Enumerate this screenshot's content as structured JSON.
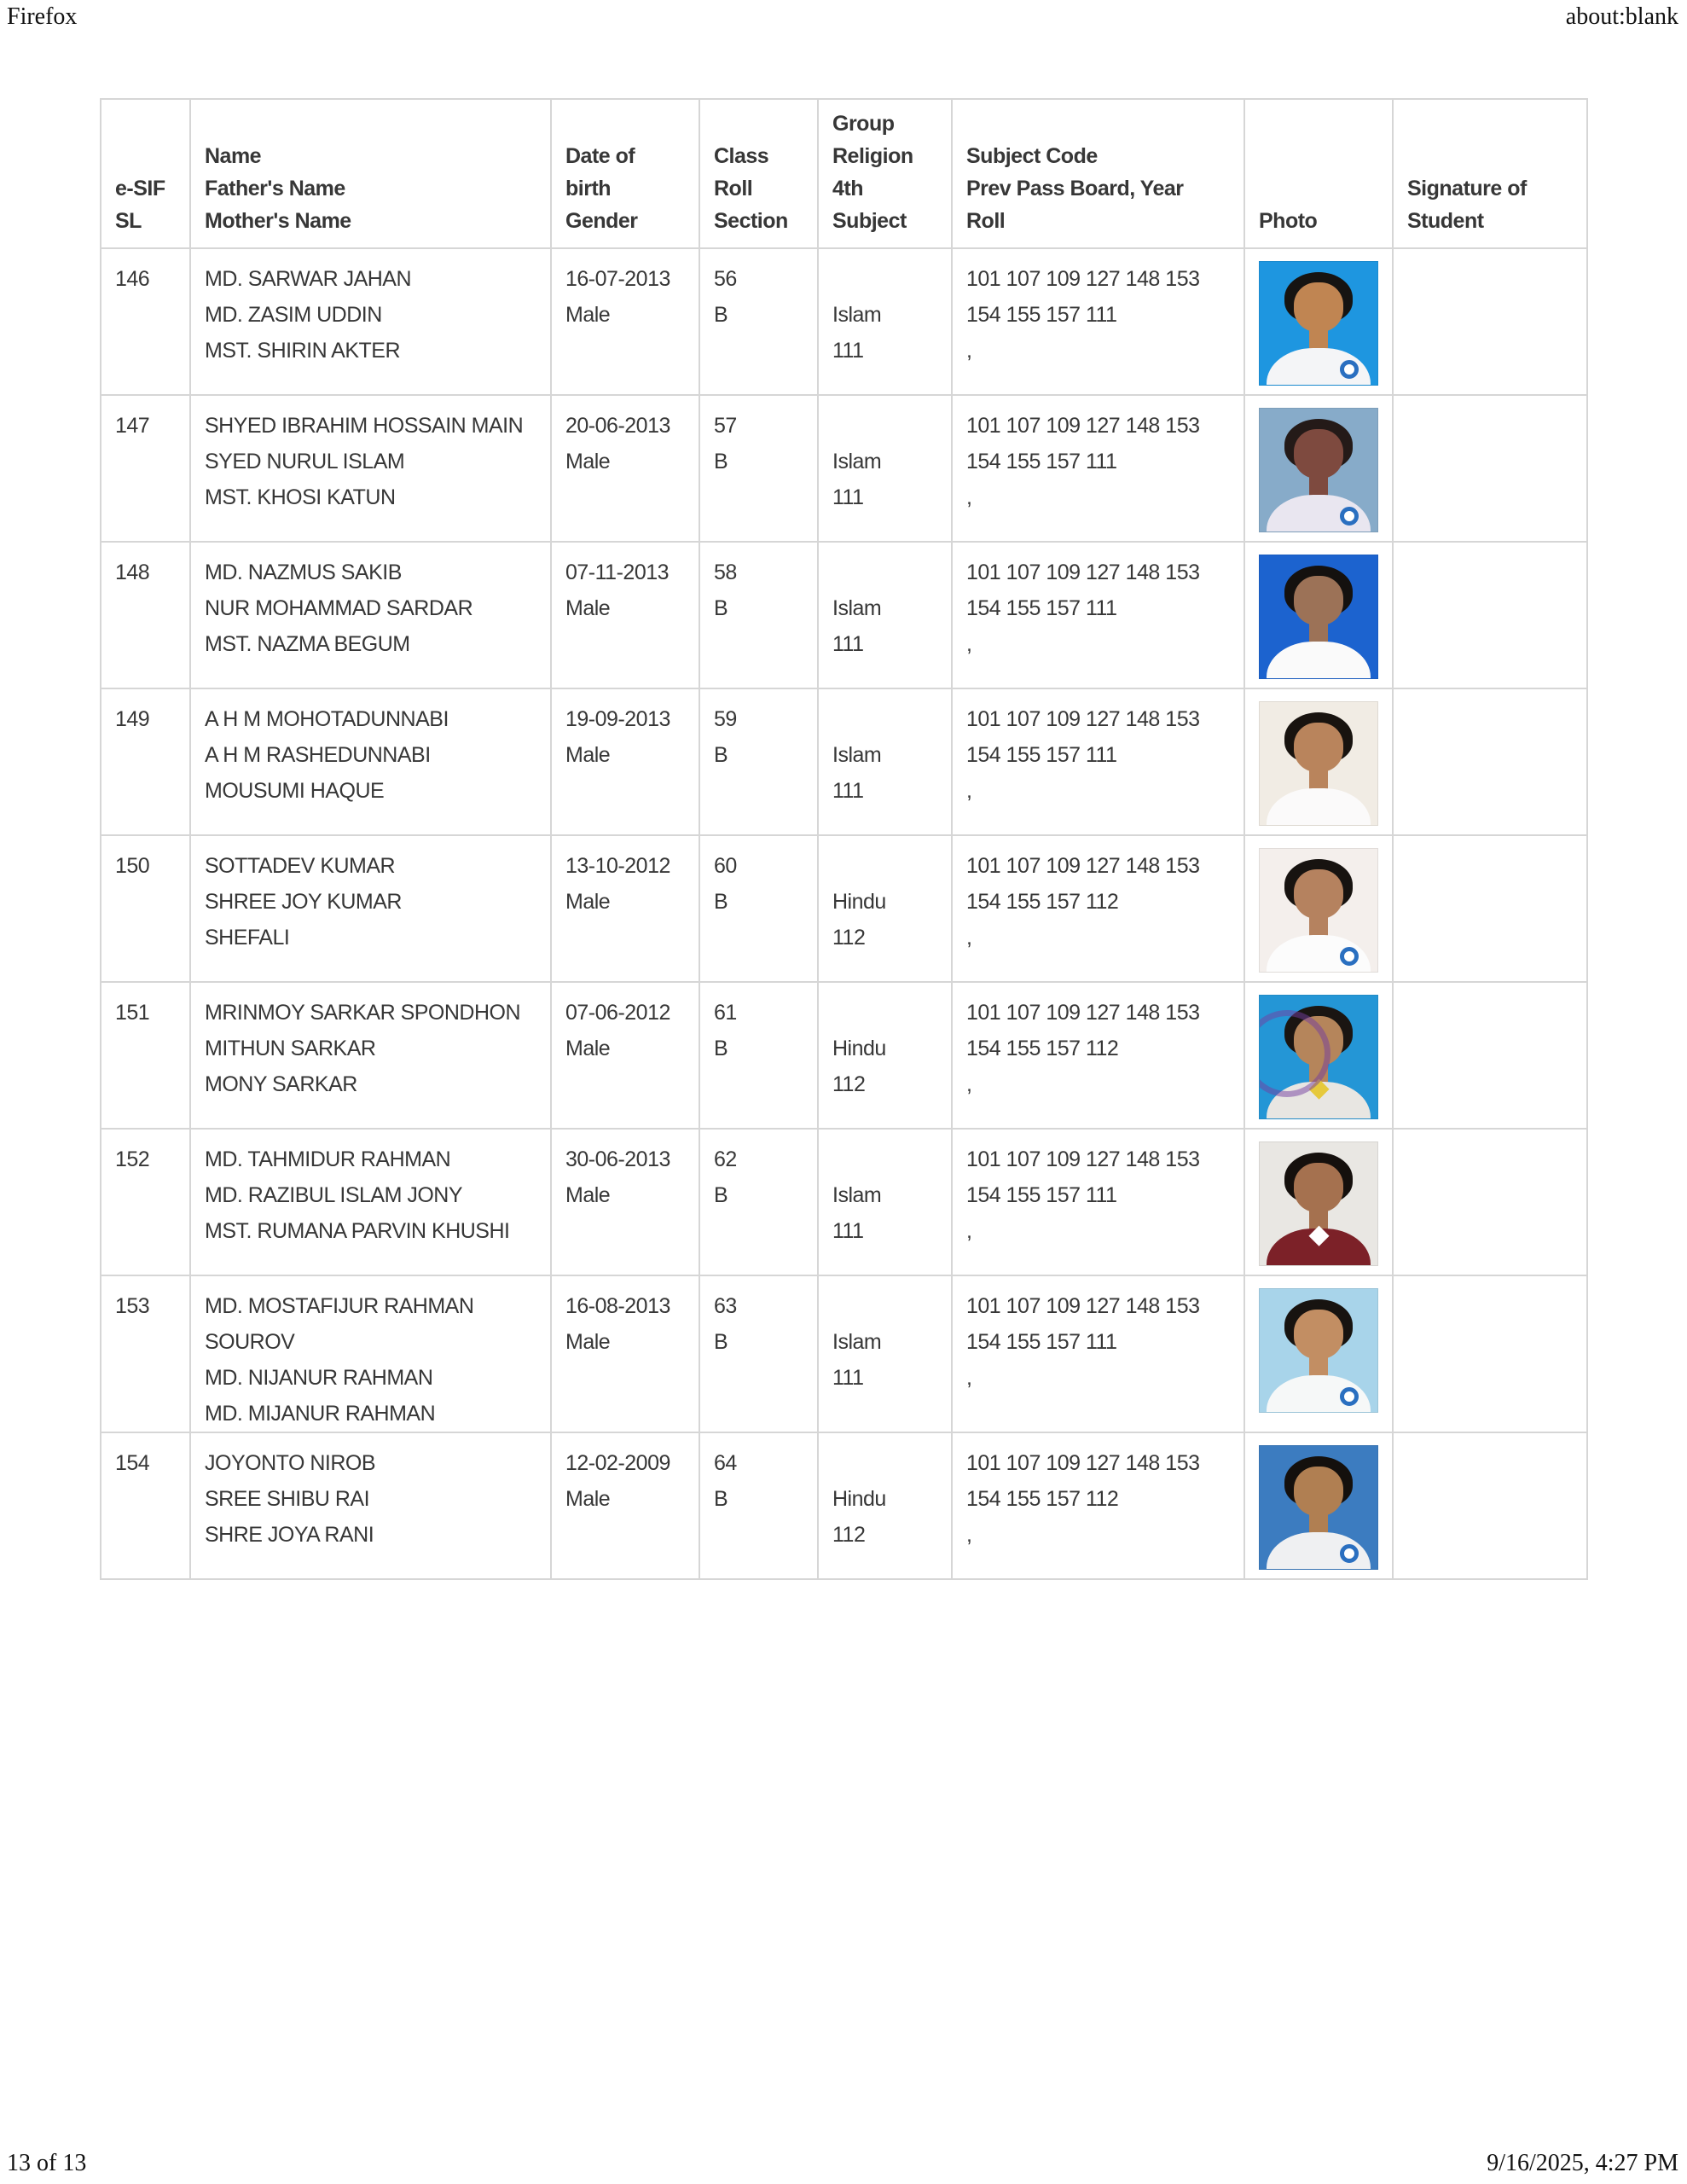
{
  "page": {
    "app_name": "Firefox",
    "url": "about:blank",
    "footer_page": "13 of 13",
    "footer_timestamp": "9/16/2025, 4:27 PM"
  },
  "table": {
    "headers": {
      "sl": [
        "e-SIF",
        "SL"
      ],
      "name": [
        "Name",
        "Father's Name",
        "Mother's Name"
      ],
      "dob": [
        "Date of",
        "birth",
        "Gender"
      ],
      "roll": [
        "Class",
        "Roll",
        "Section"
      ],
      "group": [
        "Group",
        "Religion",
        "4th",
        "Subject"
      ],
      "subject": [
        "Subject Code",
        "Prev Pass Board, Year",
        "Roll"
      ],
      "photo": [
        "Photo"
      ],
      "signature": [
        "Signature of",
        "Student"
      ]
    },
    "rows": [
      {
        "sl": "146",
        "name": [
          "MD. SARWAR JAHAN",
          "MD. ZASIM UDDIN",
          "MST. SHIRIN AKTER"
        ],
        "dob": [
          "16-07-2013",
          "Male"
        ],
        "roll": [
          "56",
          "B"
        ],
        "group": [
          "",
          "Islam",
          "111"
        ],
        "subject": [
          "101 107 109 127 148 153",
          "154 155 157 111",
          ","
        ],
        "photo": {
          "bg": "#1e96e0",
          "hair": "#161412",
          "skin": "#c08552",
          "shirt": "#f4f5f7",
          "badge": true,
          "stamp": false,
          "collar": ""
        }
      },
      {
        "sl": "147",
        "name": [
          "SHYED IBRAHIM HOSSAIN MAIN",
          "SYED NURUL ISLAM",
          "MST. KHOSI KATUN"
        ],
        "dob": [
          "20-06-2013",
          "Male"
        ],
        "roll": [
          "57",
          "B"
        ],
        "group": [
          "",
          "Islam",
          "111"
        ],
        "subject": [
          "101 107 109 127 148 153",
          "154 155 157 111",
          ","
        ],
        "photo": {
          "bg": "#87abc9",
          "hair": "#241a18",
          "skin": "#7e4a3f",
          "shirt": "#e9e6f0",
          "badge": true,
          "stamp": false,
          "collar": ""
        }
      },
      {
        "sl": "148",
        "name": [
          "MD. NAZMUS SAKIB",
          "NUR MOHAMMAD SARDAR",
          "MST. NAZMA BEGUM"
        ],
        "dob": [
          "07-11-2013",
          "Male"
        ],
        "roll": [
          "58",
          "B"
        ],
        "group": [
          "",
          "Islam",
          "111"
        ],
        "subject": [
          "101 107 109 127 148 153",
          "154 155 157 111",
          ","
        ],
        "photo": {
          "bg": "#1c63cf",
          "hair": "#14110f",
          "skin": "#9c7257",
          "shirt": "#fafafa",
          "badge": false,
          "stamp": false,
          "collar": ""
        }
      },
      {
        "sl": "149",
        "name": [
          "A H M MOHOTADUNNABI",
          "A H M RASHEDUNNABI",
          "MOUSUMI HAQUE"
        ],
        "dob": [
          "19-09-2013",
          "Male"
        ],
        "roll": [
          "59",
          "B"
        ],
        "group": [
          "",
          "Islam",
          "111"
        ],
        "subject": [
          "101 107 109 127 148 153",
          "154 155 157 111",
          ","
        ],
        "photo": {
          "bg": "#f1ece4",
          "hair": "#18130f",
          "skin": "#b9845c",
          "shirt": "#fbfafa",
          "badge": false,
          "stamp": false,
          "collar": ""
        }
      },
      {
        "sl": "150",
        "name": [
          "SOTTADEV KUMAR",
          "SHREE JOY KUMAR",
          "SHEFALI"
        ],
        "dob": [
          "13-10-2012",
          "Male"
        ],
        "roll": [
          "60",
          "B"
        ],
        "group": [
          "",
          "Hindu",
          "112"
        ],
        "subject": [
          "101 107 109 127 148 153",
          "154 155 157 112",
          ","
        ],
        "photo": {
          "bg": "#f4efec",
          "hair": "#171310",
          "skin": "#b5825f",
          "shirt": "#fcfcfc",
          "badge": true,
          "stamp": false,
          "collar": ""
        }
      },
      {
        "sl": "151",
        "name": [
          "MRINMOY SARKAR SPONDHON",
          "MITHUN SARKAR",
          "MONY SARKAR"
        ],
        "dob": [
          "07-06-2012",
          "Male"
        ],
        "roll": [
          "61",
          "B"
        ],
        "group": [
          "",
          "Hindu",
          "112"
        ],
        "subject": [
          "101 107 109 127 148 153",
          "154 155 157 112",
          ","
        ],
        "photo": {
          "bg": "#2496d6",
          "hair": "#1a1512",
          "skin": "#b5855b",
          "shirt": "#e8e6e2",
          "badge": false,
          "stamp": true,
          "collar": "#e6c93c"
        }
      },
      {
        "sl": "152",
        "name": [
          "MD. TAHMIDUR RAHMAN",
          "MD. RAZIBUL ISLAM JONY",
          "MST. RUMANA PARVIN KHUSHI"
        ],
        "dob": [
          "30-06-2013",
          "Male"
        ],
        "roll": [
          "62",
          "B"
        ],
        "group": [
          "",
          "Islam",
          "111"
        ],
        "subject": [
          "101 107 109 127 148 153",
          "154 155 157 111",
          ","
        ],
        "photo": {
          "bg": "#e9e7e3",
          "hair": "#15100d",
          "skin": "#a5714f",
          "shirt": "#7c2128",
          "badge": false,
          "stamp": false,
          "collar": "#ffffff"
        }
      },
      {
        "sl": "153",
        "name": [
          "MD. MOSTAFIJUR RAHMAN",
          "SOUROV",
          "MD. NIJANUR RAHMAN",
          "MD. MIJANUR RAHMAN"
        ],
        "dob": [
          "16-08-2013",
          "Male"
        ],
        "roll": [
          "63",
          "B"
        ],
        "group": [
          "",
          "Islam",
          "111"
        ],
        "subject": [
          "101 107 109 127 148 153",
          "154 155 157 111",
          ","
        ],
        "photo": {
          "bg": "#a8d4ea",
          "hair": "#171310",
          "skin": "#c28e63",
          "shirt": "#f6f8f8",
          "badge": true,
          "stamp": false,
          "collar": ""
        }
      },
      {
        "sl": "154",
        "name": [
          "JOYONTO NIROB",
          "SREE SHIBU RAI",
          "SHRE JOYA RANI"
        ],
        "dob": [
          "12-02-2009",
          "Male"
        ],
        "roll": [
          "64",
          "B"
        ],
        "group": [
          "",
          "Hindu",
          "112"
        ],
        "subject": [
          "101 107 109 127 148 153",
          "154 155 157 112",
          ","
        ],
        "photo": {
          "bg": "#3c7cc0",
          "hair": "#14100d",
          "skin": "#b07f52",
          "shirt": "#eff0f2",
          "badge": true,
          "stamp": false,
          "collar": ""
        }
      }
    ]
  }
}
